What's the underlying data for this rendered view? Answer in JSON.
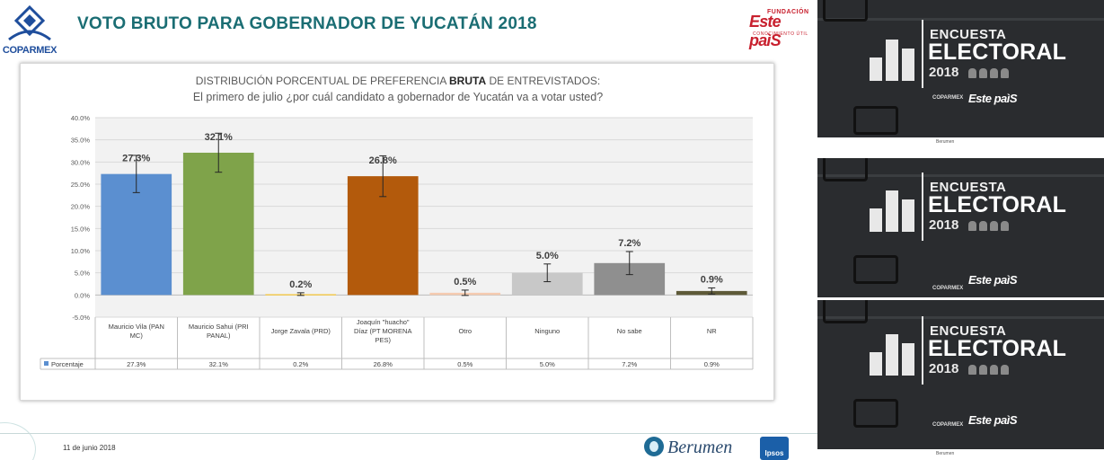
{
  "slide": {
    "title": "VOTO BRUTO PARA GOBERNADOR DE YUCATÁN 2018",
    "logo_left": "COPARMEX",
    "logo_right_sup": "FUNDACIÓN",
    "logo_right": "Este paìS",
    "logo_right_sub": "CONOCIMIENTO ÚTIL",
    "footer_date": "11 de junio 2018",
    "footer_brand_1": "Berumen",
    "footer_brand_2": "Ipsos"
  },
  "chart_data": {
    "type": "bar",
    "title_prefix": "DISTRIBUCIÓN PORCENTUAL DE PREFERENCIA ",
    "title_bold": "BRUTA",
    "title_suffix": " DE ENTREVISTADOS:",
    "subtitle": "El primero de julio ¿por cuál candidato a gobernador de Yucatán va a votar usted?",
    "categories": [
      "Mauricio Vila (PAN MC)",
      "Mauricio Sahui (PRI PANAL)",
      "Jorge Zavala (PRD)",
      "Joaquín \"huacho\" Díaz (PT MORENA PES)",
      "Otro",
      "Ninguno",
      "No sabe",
      "NR"
    ],
    "category_lines": [
      [
        "Mauricio Vila (PAN",
        "MC)"
      ],
      [
        "Mauricio Sahui (PRI",
        "PANAL)"
      ],
      [
        "Jorge Zavala (PRD)"
      ],
      [
        "Joaquín \"huacho\"",
        "Díaz (PT MORENA",
        "PES)"
      ],
      [
        "Otro"
      ],
      [
        "Ninguno"
      ],
      [
        "No sabe"
      ],
      [
        "NR"
      ]
    ],
    "series": [
      {
        "name": "Porcentaje",
        "values": [
          27.3,
          32.1,
          0.2,
          26.8,
          0.5,
          5.0,
          7.2,
          0.9
        ],
        "labels": [
          "27.3%",
          "32.1%",
          "0.2%",
          "26.8%",
          "0.5%",
          "5.0%",
          "7.2%",
          "0.9%"
        ],
        "error": [
          4.2,
          4.4,
          0.3,
          4.6,
          0.6,
          2.0,
          2.6,
          0.7
        ]
      }
    ],
    "colors": [
      "#5b8fd0",
      "#7fa34a",
      "#f5cc54",
      "#b35a0c",
      "#f6cbb0",
      "#c8c8c8",
      "#8f8f8f",
      "#5e5a38"
    ],
    "ylim": [
      -5,
      40
    ],
    "yticks": [
      "-5.0%",
      "0.0%",
      "5.0%",
      "10.0%",
      "15.0%",
      "20.0%",
      "25.0%",
      "30.0%",
      "35.0%",
      "40.0%"
    ],
    "ytick_values": [
      -5,
      0,
      5,
      10,
      15,
      20,
      25,
      30,
      35,
      40
    ],
    "grid": true,
    "legend": "data-table"
  },
  "thumbnails": {
    "encuesta": "ENCUESTA",
    "electoral": "ELECTORAL",
    "year": "2018",
    "logo_a": "COPARMEX",
    "logo_b": "Este paìS",
    "strip": "Berumen"
  }
}
